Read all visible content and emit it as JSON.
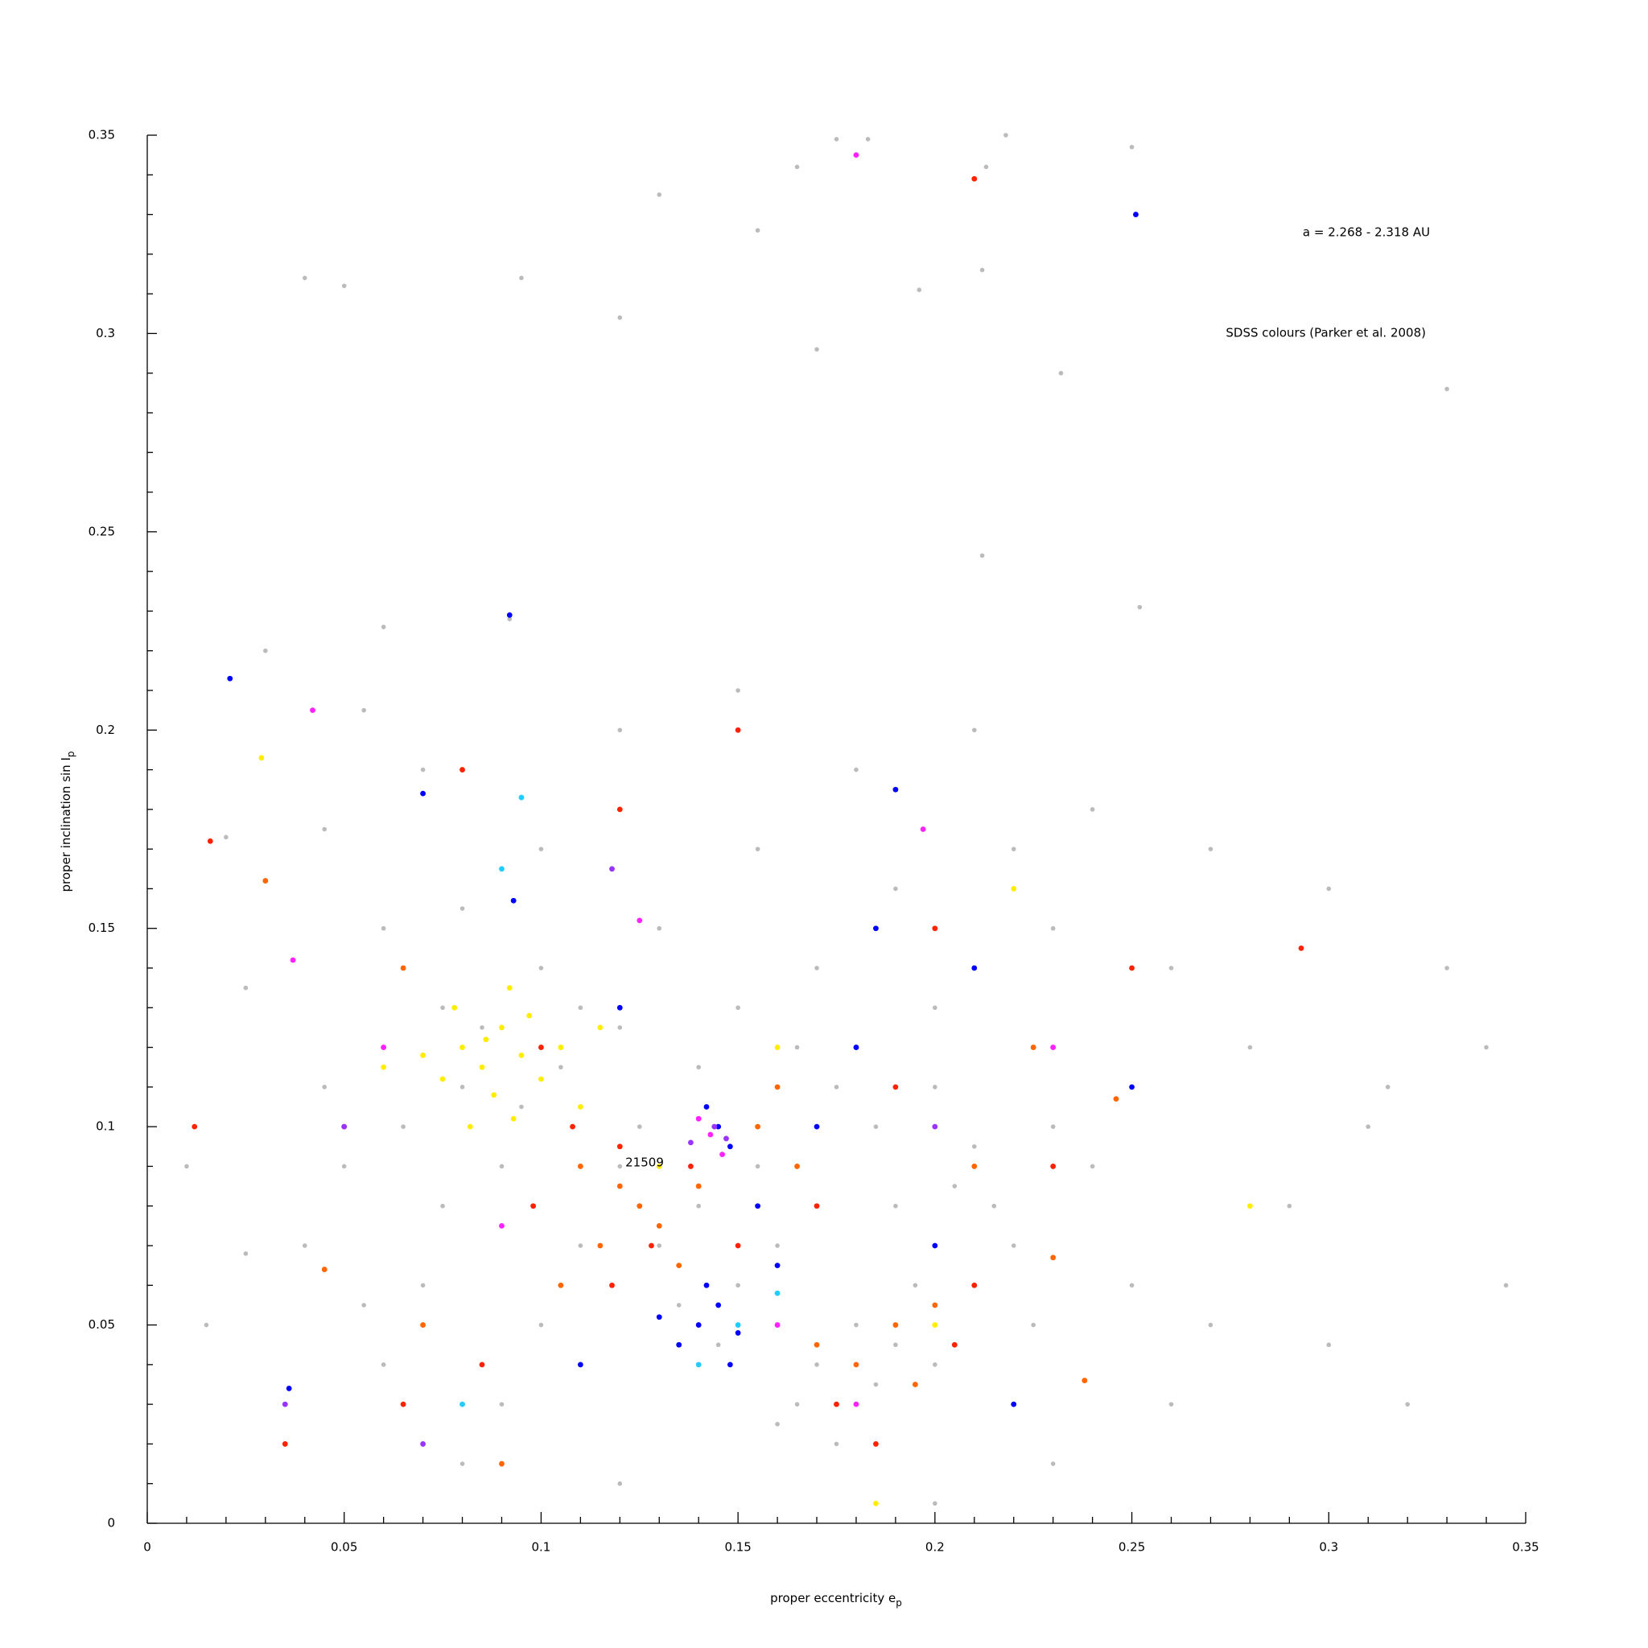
{
  "chart_data": {
    "type": "scatter",
    "xlabel": "proper eccentricity e",
    "xlabel_sub": "p",
    "ylabel": "proper inclination sin I",
    "ylabel_sub": "p",
    "annotations": [
      "a = 2.268 - 2.318 AU",
      "SDSS colours (Parker et al. 2008)",
      "21509"
    ],
    "xlim": [
      0,
      0.35
    ],
    "ylim": [
      0,
      0.35
    ],
    "xticks": [
      0,
      0.05,
      0.1,
      0.15,
      0.2,
      0.25,
      0.3,
      0.35
    ],
    "yticks": [
      0,
      0.05,
      0.1,
      0.15,
      0.2,
      0.25,
      0.3,
      0.35
    ],
    "x_minor_ticks": [
      0.01,
      0.02,
      0.03,
      0.04,
      0.06,
      0.07,
      0.08,
      0.09,
      0.11,
      0.12,
      0.13,
      0.14,
      0.16,
      0.17,
      0.18,
      0.19,
      0.21,
      0.22,
      0.23,
      0.24,
      0.26,
      0.27,
      0.28,
      0.29,
      0.31,
      0.32,
      0.33,
      0.34
    ],
    "y_minor_ticks": [
      0.01,
      0.02,
      0.03,
      0.04,
      0.06,
      0.07,
      0.08,
      0.09,
      0.11,
      0.12,
      0.13,
      0.14,
      0.16,
      0.17,
      0.18,
      0.19,
      0.21,
      0.22,
      0.23,
      0.24,
      0.26,
      0.27,
      0.28,
      0.29,
      0.31,
      0.32,
      0.33,
      0.34
    ],
    "series": [
      {
        "color": "#bbbbbb",
        "x": [
          0.04,
          0.05,
          0.095,
          0.13,
          0.165,
          0.175,
          0.183,
          0.212,
          0.218,
          0.25,
          0.213,
          0.155,
          0.12,
          0.17,
          0.196,
          0.232,
          0.33,
          0.212,
          0.06,
          0.092,
          0.252,
          0.03,
          0.055,
          0.045,
          0.02,
          0.07,
          0.1,
          0.12,
          0.15,
          0.18,
          0.21,
          0.24,
          0.27,
          0.3,
          0.33,
          0.34,
          0.31,
          0.28,
          0.26,
          0.23,
          0.2,
          0.17,
          0.15,
          0.13,
          0.11,
          0.1,
          0.085,
          0.08,
          0.095,
          0.105,
          0.075,
          0.065,
          0.05,
          0.04,
          0.025,
          0.015,
          0.01,
          0.035,
          0.06,
          0.07,
          0.09,
          0.1,
          0.11,
          0.12,
          0.13,
          0.14,
          0.155,
          0.16,
          0.165,
          0.16,
          0.17,
          0.175,
          0.18,
          0.185,
          0.19,
          0.195,
          0.2,
          0.205,
          0.21,
          0.215,
          0.22,
          0.225,
          0.23,
          0.24,
          0.25,
          0.26,
          0.27,
          0.29,
          0.3,
          0.315,
          0.32,
          0.345,
          0.15,
          0.145,
          0.135,
          0.125,
          0.175,
          0.185,
          0.19,
          0.2,
          0.165,
          0.14,
          0.12,
          0.09,
          0.075,
          0.055,
          0.045,
          0.025,
          0.08,
          0.12,
          0.2,
          0.23,
          0.155,
          0.19,
          0.22,
          0.08,
          0.06
        ],
        "values": [
          0.314,
          0.312,
          0.314,
          0.335,
          0.342,
          0.349,
          0.349,
          0.316,
          0.35,
          0.347,
          0.342,
          0.326,
          0.304,
          0.296,
          0.311,
          0.29,
          0.286,
          0.244,
          0.226,
          0.228,
          0.231,
          0.22,
          0.205,
          0.175,
          0.173,
          0.19,
          0.17,
          0.2,
          0.21,
          0.19,
          0.2,
          0.18,
          0.17,
          0.16,
          0.14,
          0.12,
          0.1,
          0.12,
          0.14,
          0.15,
          0.13,
          0.14,
          0.13,
          0.15,
          0.13,
          0.14,
          0.125,
          0.11,
          0.105,
          0.115,
          0.13,
          0.1,
          0.09,
          0.07,
          0.068,
          0.05,
          0.09,
          0.03,
          0.04,
          0.06,
          0.03,
          0.05,
          0.07,
          0.09,
          0.07,
          0.08,
          0.09,
          0.07,
          0.03,
          0.025,
          0.04,
          0.02,
          0.05,
          0.035,
          0.045,
          0.06,
          0.04,
          0.085,
          0.095,
          0.08,
          0.07,
          0.05,
          0.1,
          0.09,
          0.06,
          0.03,
          0.05,
          0.08,
          0.045,
          0.11,
          0.03,
          0.06,
          0.06,
          0.045,
          0.055,
          0.1,
          0.11,
          0.1,
          0.08,
          0.11,
          0.12,
          0.115,
          0.125,
          0.09,
          0.08,
          0.055,
          0.11,
          0.135,
          0.015,
          0.01,
          0.005,
          0.015,
          0.17,
          0.16,
          0.17,
          0.155,
          0.15
        ]
      },
      {
        "color": "#ffee00",
        "x": [
          0.08,
          0.085,
          0.09,
          0.095,
          0.1,
          0.088,
          0.078,
          0.092,
          0.105,
          0.082,
          0.097,
          0.11,
          0.075,
          0.086,
          0.093,
          0.07,
          0.115,
          0.029,
          0.06,
          0.16,
          0.2,
          0.22,
          0.185,
          0.28,
          0.13
        ],
        "values": [
          0.12,
          0.115,
          0.125,
          0.118,
          0.112,
          0.108,
          0.13,
          0.135,
          0.12,
          0.1,
          0.128,
          0.105,
          0.112,
          0.122,
          0.102,
          0.118,
          0.125,
          0.193,
          0.115,
          0.12,
          0.05,
          0.16,
          0.005,
          0.08,
          0.09
        ]
      },
      {
        "color": "#ff6600",
        "x": [
          0.12,
          0.125,
          0.13,
          0.11,
          0.115,
          0.135,
          0.14,
          0.105,
          0.18,
          0.19,
          0.195,
          0.17,
          0.2,
          0.155,
          0.16,
          0.165,
          0.065,
          0.045,
          0.03,
          0.238,
          0.246,
          0.09,
          0.21,
          0.23,
          0.07,
          0.225
        ],
        "values": [
          0.085,
          0.08,
          0.075,
          0.09,
          0.07,
          0.065,
          0.085,
          0.06,
          0.04,
          0.05,
          0.035,
          0.045,
          0.055,
          0.1,
          0.11,
          0.09,
          0.14,
          0.064,
          0.162,
          0.036,
          0.107,
          0.015,
          0.09,
          0.067,
          0.05,
          0.12
        ]
      },
      {
        "color": "#ff2200",
        "x": [
          0.12,
          0.128,
          0.118,
          0.138,
          0.108,
          0.098,
          0.15,
          0.175,
          0.185,
          0.205,
          0.21,
          0.19,
          0.17,
          0.08,
          0.065,
          0.05,
          0.016,
          0.012,
          0.25,
          0.293,
          0.12,
          0.15,
          0.2,
          0.21,
          0.035,
          0.23,
          0.085,
          0.1
        ],
        "values": [
          0.095,
          0.07,
          0.06,
          0.09,
          0.1,
          0.08,
          0.07,
          0.03,
          0.02,
          0.045,
          0.06,
          0.11,
          0.08,
          0.19,
          0.03,
          0.1,
          0.172,
          0.1,
          0.14,
          0.145,
          0.18,
          0.2,
          0.15,
          0.339,
          0.02,
          0.09,
          0.04,
          0.12
        ]
      },
      {
        "color": "#0000ff",
        "x": [
          0.14,
          0.145,
          0.135,
          0.15,
          0.142,
          0.148,
          0.13,
          0.145,
          0.148,
          0.142,
          0.155,
          0.16,
          0.17,
          0.18,
          0.185,
          0.19,
          0.21,
          0.092,
          0.021,
          0.251,
          0.07,
          0.093,
          0.12,
          0.2,
          0.22,
          0.25,
          0.036,
          0.11
        ],
        "values": [
          0.05,
          0.055,
          0.045,
          0.048,
          0.06,
          0.04,
          0.052,
          0.1,
          0.095,
          0.105,
          0.08,
          0.065,
          0.1,
          0.12,
          0.15,
          0.185,
          0.14,
          0.229,
          0.213,
          0.33,
          0.184,
          0.157,
          0.13,
          0.07,
          0.03,
          0.11,
          0.034,
          0.04
        ]
      },
      {
        "color": "#ff22ff",
        "x": [
          0.143,
          0.146,
          0.14,
          0.18,
          0.042,
          0.037,
          0.197,
          0.125,
          0.18,
          0.09,
          0.16,
          0.23,
          0.06
        ],
        "values": [
          0.098,
          0.093,
          0.102,
          0.345,
          0.205,
          0.142,
          0.175,
          0.152,
          0.03,
          0.075,
          0.05,
          0.12,
          0.12
        ]
      },
      {
        "color": "#9933ff",
        "x": [
          0.144,
          0.147,
          0.138,
          0.118,
          0.035,
          0.05,
          0.07,
          0.2
        ],
        "values": [
          0.1,
          0.097,
          0.096,
          0.165,
          0.03,
          0.1,
          0.02,
          0.1
        ]
      },
      {
        "color": "#22ccff",
        "x": [
          0.15,
          0.14,
          0.095,
          0.09,
          0.08,
          0.16
        ],
        "values": [
          0.05,
          0.04,
          0.183,
          0.165,
          0.03,
          0.058
        ]
      }
    ]
  }
}
